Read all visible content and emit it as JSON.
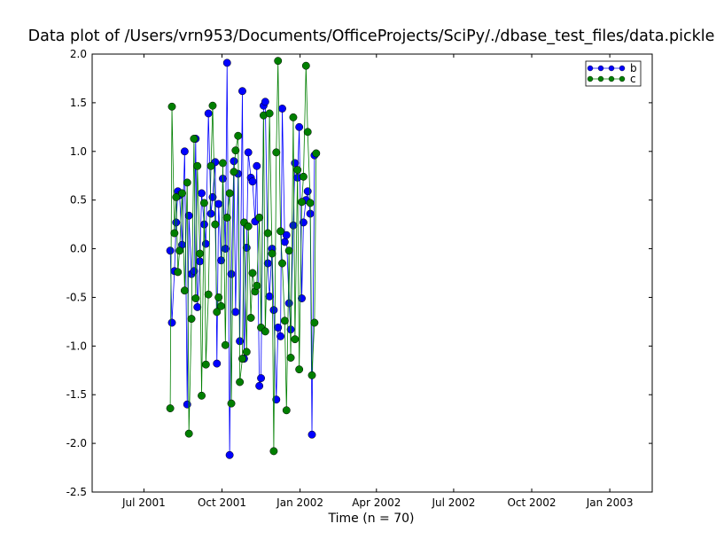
{
  "chart_data": {
    "type": "line",
    "title": "Data plot of /Users/vrn953/Documents/OfficeProjects/SciPy/./dbase_test_files/data.pickle",
    "xlabel": "Time (n = 70)",
    "ylabel": "",
    "x_axis_kind": "date",
    "xlim": [
      "2001-05-01",
      "2003-02-20"
    ],
    "ylim": [
      -2.5,
      2.0
    ],
    "x_tick_labels": [
      {
        "date": "2001-07-01",
        "label": "Jul 2001"
      },
      {
        "date": "2001-10-01",
        "label": "Oct 2001"
      },
      {
        "date": "2002-01-01",
        "label": "Jan 2002"
      },
      {
        "date": "2002-04-01",
        "label": "Apr 2002"
      },
      {
        "date": "2002-07-01",
        "label": "Jul 2002"
      },
      {
        "date": "2002-10-01",
        "label": "Oct 2002"
      },
      {
        "date": "2003-01-01",
        "label": "Jan 2003"
      }
    ],
    "y_ticks": [
      -2.5,
      -2.0,
      -1.5,
      -1.0,
      -0.5,
      0.0,
      0.5,
      1.0,
      1.5,
      2.0
    ],
    "y_tick_labels": [
      "-2.5",
      "-2.0",
      "-1.5",
      "-1.0",
      "-0.5",
      "0.0",
      "0.5",
      "1.0",
      "1.5",
      "2.0"
    ],
    "grid": false,
    "legend_position": "top-right",
    "series": [
      {
        "name": "b",
        "color": "#0000ff",
        "marker": "circle",
        "points": [
          [
            "2001-08-01",
            -0.02
          ],
          [
            "2001-08-03",
            -0.76
          ],
          [
            "2001-08-06",
            -0.23
          ],
          [
            "2001-08-08",
            0.27
          ],
          [
            "2001-08-10",
            0.59
          ],
          [
            "2001-08-12",
            0.55
          ],
          [
            "2001-08-15",
            0.04
          ],
          [
            "2001-08-18",
            1.0
          ],
          [
            "2001-08-21",
            -1.6
          ],
          [
            "2001-08-23",
            0.34
          ],
          [
            "2001-08-26",
            -0.26
          ],
          [
            "2001-08-29",
            -0.23
          ],
          [
            "2001-08-31",
            1.13
          ],
          [
            "2001-09-02",
            -0.6
          ],
          [
            "2001-09-05",
            -0.13
          ],
          [
            "2001-09-07",
            0.57
          ],
          [
            "2001-09-10",
            0.25
          ],
          [
            "2001-09-12",
            0.05
          ],
          [
            "2001-09-15",
            1.39
          ],
          [
            "2001-09-18",
            0.36
          ],
          [
            "2001-09-20",
            0.53
          ],
          [
            "2001-09-23",
            0.89
          ],
          [
            "2001-09-25",
            -1.18
          ],
          [
            "2001-09-27",
            0.46
          ],
          [
            "2001-09-30",
            -0.12
          ],
          [
            "2001-10-02",
            0.72
          ],
          [
            "2001-10-05",
            0.0
          ],
          [
            "2001-10-07",
            1.91
          ],
          [
            "2001-10-10",
            -2.12
          ],
          [
            "2001-10-12",
            -0.26
          ],
          [
            "2001-10-15",
            0.9
          ],
          [
            "2001-10-17",
            -0.65
          ],
          [
            "2001-10-20",
            0.77
          ],
          [
            "2001-10-22",
            -0.95
          ],
          [
            "2001-10-25",
            1.62
          ],
          [
            "2001-10-27",
            -1.13
          ],
          [
            "2001-10-30",
            0.01
          ],
          [
            "2001-11-01",
            0.99
          ],
          [
            "2001-11-04",
            0.73
          ],
          [
            "2001-11-06",
            0.69
          ],
          [
            "2001-11-09",
            0.28
          ],
          [
            "2001-11-11",
            0.85
          ],
          [
            "2001-11-14",
            -1.41
          ],
          [
            "2001-11-16",
            -1.33
          ],
          [
            "2001-11-19",
            1.47
          ],
          [
            "2001-11-21",
            1.51
          ],
          [
            "2001-11-24",
            -0.15
          ],
          [
            "2001-11-26",
            -0.49
          ],
          [
            "2001-11-29",
            0.0
          ],
          [
            "2001-12-01",
            -0.63
          ],
          [
            "2001-12-04",
            -1.55
          ],
          [
            "2001-12-06",
            -0.81
          ],
          [
            "2001-12-09",
            -0.9
          ],
          [
            "2001-12-11",
            1.44
          ],
          [
            "2001-12-14",
            0.07
          ],
          [
            "2001-12-16",
            0.14
          ],
          [
            "2001-12-19",
            -0.56
          ],
          [
            "2001-12-21",
            -0.83
          ],
          [
            "2001-12-24",
            0.24
          ],
          [
            "2001-12-26",
            0.88
          ],
          [
            "2001-12-29",
            0.73
          ],
          [
            "2001-12-31",
            1.25
          ],
          [
            "2002-01-03",
            -0.51
          ],
          [
            "2002-01-05",
            0.27
          ],
          [
            "2002-01-08",
            0.5
          ],
          [
            "2002-01-10",
            0.59
          ],
          [
            "2002-01-13",
            0.36
          ],
          [
            "2002-01-15",
            -1.91
          ],
          [
            "2002-01-18",
            0.96
          ]
        ]
      },
      {
        "name": "c",
        "color": "#007f00",
        "marker": "circle",
        "points": [
          [
            "2001-08-01",
            -1.64
          ],
          [
            "2001-08-03",
            1.46
          ],
          [
            "2001-08-06",
            0.16
          ],
          [
            "2001-08-08",
            0.53
          ],
          [
            "2001-08-10",
            -0.24
          ],
          [
            "2001-08-12",
            -0.02
          ],
          [
            "2001-08-15",
            0.57
          ],
          [
            "2001-08-18",
            -0.43
          ],
          [
            "2001-08-21",
            0.68
          ],
          [
            "2001-08-23",
            -1.9
          ],
          [
            "2001-08-26",
            -0.72
          ],
          [
            "2001-08-29",
            1.13
          ],
          [
            "2001-08-31",
            -0.51
          ],
          [
            "2001-09-02",
            0.85
          ],
          [
            "2001-09-05",
            -0.05
          ],
          [
            "2001-09-07",
            -1.51
          ],
          [
            "2001-09-10",
            0.47
          ],
          [
            "2001-09-12",
            -1.19
          ],
          [
            "2001-09-15",
            -0.47
          ],
          [
            "2001-09-18",
            0.85
          ],
          [
            "2001-09-20",
            1.47
          ],
          [
            "2001-09-23",
            0.25
          ],
          [
            "2001-09-25",
            -0.65
          ],
          [
            "2001-09-27",
            -0.5
          ],
          [
            "2001-09-30",
            -0.59
          ],
          [
            "2001-10-02",
            0.88
          ],
          [
            "2001-10-05",
            -0.99
          ],
          [
            "2001-10-07",
            0.32
          ],
          [
            "2001-10-10",
            0.57
          ],
          [
            "2001-10-12",
            -1.59
          ],
          [
            "2001-10-15",
            0.79
          ],
          [
            "2001-10-17",
            1.01
          ],
          [
            "2001-10-20",
            1.16
          ],
          [
            "2001-10-22",
            -1.37
          ],
          [
            "2001-10-25",
            -1.13
          ],
          [
            "2001-10-27",
            0.27
          ],
          [
            "2001-10-30",
            -1.06
          ],
          [
            "2001-11-01",
            0.23
          ],
          [
            "2001-11-04",
            -0.71
          ],
          [
            "2001-11-06",
            -0.25
          ],
          [
            "2001-11-09",
            -0.44
          ],
          [
            "2001-11-11",
            -0.38
          ],
          [
            "2001-11-14",
            0.32
          ],
          [
            "2001-11-16",
            -0.81
          ],
          [
            "2001-11-19",
            1.37
          ],
          [
            "2001-11-21",
            -0.85
          ],
          [
            "2001-11-24",
            0.16
          ],
          [
            "2001-11-26",
            1.39
          ],
          [
            "2001-11-29",
            -0.05
          ],
          [
            "2001-12-01",
            -2.08
          ],
          [
            "2001-12-04",
            0.99
          ],
          [
            "2001-12-06",
            1.93
          ],
          [
            "2001-12-09",
            0.18
          ],
          [
            "2001-12-11",
            -0.15
          ],
          [
            "2001-12-14",
            -0.74
          ],
          [
            "2001-12-16",
            -1.66
          ],
          [
            "2001-12-19",
            -0.02
          ],
          [
            "2001-12-21",
            -1.12
          ],
          [
            "2001-12-24",
            1.35
          ],
          [
            "2001-12-26",
            -0.93
          ],
          [
            "2001-12-29",
            0.81
          ],
          [
            "2001-12-31",
            -1.24
          ],
          [
            "2002-01-03",
            0.48
          ],
          [
            "2002-01-05",
            0.74
          ],
          [
            "2002-01-08",
            1.88
          ],
          [
            "2002-01-10",
            1.2
          ],
          [
            "2002-01-13",
            0.47
          ],
          [
            "2002-01-15",
            -1.3
          ],
          [
            "2002-01-18",
            -0.76
          ],
          [
            "2002-01-20",
            0.98
          ]
        ]
      }
    ]
  }
}
